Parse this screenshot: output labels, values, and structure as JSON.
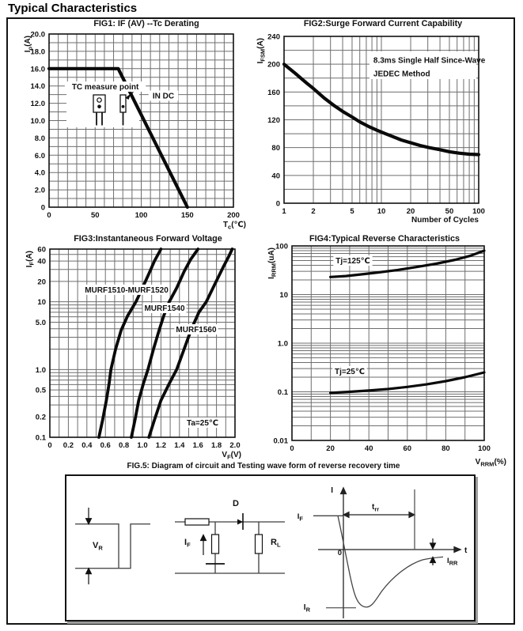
{
  "page": {
    "title": "Typical Characteristics"
  },
  "chart_data": [
    {
      "id": "fig1",
      "type": "line",
      "title": "FIG1: IF (AV) --Tc Derating",
      "xlabel": {
        "main": "T",
        "sub": "c",
        "tail": "(℃)"
      },
      "ylabel": {
        "main": "I",
        "sub": "o",
        "tail": "(A)"
      },
      "x": {
        "scale": "linear",
        "min": 0,
        "max": 200,
        "grid_step": 10,
        "ticks": [
          {
            "v": 0,
            "t": "0"
          },
          {
            "v": 50,
            "t": "50"
          },
          {
            "v": 100,
            "t": "100"
          },
          {
            "v": 150,
            "t": "150"
          },
          {
            "v": 200,
            "t": "200"
          }
        ]
      },
      "y": {
        "scale": "linear",
        "min": 0,
        "max": 20,
        "grid_step": 1,
        "ticks": [
          {
            "v": 20,
            "t": "20.0"
          },
          {
            "v": 18,
            "t": "18.0"
          },
          {
            "v": 16,
            "t": "16.0"
          },
          {
            "v": 14,
            "t": "14.0"
          },
          {
            "v": 12,
            "t": "12.0"
          },
          {
            "v": 10,
            "t": "10.0"
          },
          {
            "v": 8,
            "t": "8.0"
          },
          {
            "v": 6,
            "t": "6.0"
          },
          {
            "v": 4,
            "t": "4.0"
          },
          {
            "v": 2,
            "t": "2.0"
          },
          {
            "v": 0,
            "t": "0"
          }
        ]
      },
      "series": [
        {
          "name": "if-av-tc-derating",
          "points": [
            [
              0,
              16
            ],
            [
              75,
              16
            ],
            [
              150,
              0
            ]
          ]
        }
      ],
      "annotations": [
        {
          "kind": "label",
          "text": "TC measure point",
          "fx": 0.305,
          "fy": 0.304,
          "anchor": "middle",
          "bg": true
        },
        {
          "kind": "label",
          "text": "IN DC",
          "fx": 0.62,
          "fy": 0.356,
          "anchor": "middle",
          "bg": true
        }
      ],
      "decoration": "to220-packages"
    },
    {
      "id": "fig2",
      "type": "line",
      "title": "FIG2:Surge Forward Current Capability",
      "xlabel": {
        "text": "Number of Cycles"
      },
      "ylabel": {
        "main": "I",
        "sub": "FSM",
        "tail": "(A)"
      },
      "x": {
        "scale": "log",
        "min": 1,
        "max": 100,
        "ticks": [
          {
            "v": 1,
            "t": "1"
          },
          {
            "v": 2,
            "t": "2"
          },
          {
            "v": 5,
            "t": "5"
          },
          {
            "v": 10,
            "t": "10"
          },
          {
            "v": 20,
            "t": "20"
          },
          {
            "v": 50,
            "t": "50"
          },
          {
            "v": 100,
            "t": "100"
          }
        ]
      },
      "y": {
        "scale": "linear",
        "min": 0,
        "max": 240,
        "grid_step": 20,
        "ticks": [
          {
            "v": 240,
            "t": "240"
          },
          {
            "v": 200,
            "t": "200"
          },
          {
            "v": 160,
            "t": "160"
          },
          {
            "v": 120,
            "t": "120"
          },
          {
            "v": 80,
            "t": "80"
          },
          {
            "v": 40,
            "t": "40"
          },
          {
            "v": 0,
            "t": "0"
          }
        ]
      },
      "series": [
        {
          "name": "surge-current",
          "points": [
            [
              1,
              200
            ],
            [
              1.3,
              187
            ],
            [
              1.7,
              173
            ],
            [
              2,
              165
            ],
            [
              2.6,
              151
            ],
            [
              3.3,
              140
            ],
            [
              4,
              132
            ],
            [
              5,
              124
            ],
            [
              6,
              117
            ],
            [
              7.5,
              110
            ],
            [
              9,
              105
            ],
            [
              11,
              100
            ],
            [
              13,
              96
            ],
            [
              16,
              91
            ],
            [
              20,
              87
            ],
            [
              25,
              83
            ],
            [
              31,
              80
            ],
            [
              40,
              77
            ],
            [
              50,
              74
            ],
            [
              63,
              72
            ],
            [
              80,
              70.5
            ],
            [
              100,
              70
            ]
          ]
        }
      ],
      "annotations": [
        {
          "kind": "box",
          "fx0": 0.439,
          "fy0": 0.09,
          "fx1": 0.988,
          "fy1": 0.256
        },
        {
          "kind": "label",
          "text": "8.3ms Single Half Since-Wave",
          "fx": 0.459,
          "fy": 0.142,
          "anchor": "start",
          "bg": false
        },
        {
          "kind": "label",
          "text": "JEDEC Method",
          "fx": 0.459,
          "fy": 0.223,
          "anchor": "start",
          "bg": false
        }
      ]
    },
    {
      "id": "fig3",
      "type": "line",
      "title": "FIG3:Instantaneous Forward Voltage",
      "xlabel": {
        "main": "V",
        "sub": "F",
        "tail": "(V)"
      },
      "ylabel": {
        "main": "I",
        "sub": "F",
        "tail": "(A)"
      },
      "x": {
        "scale": "linear",
        "min": 0,
        "max": 2,
        "grid_step": 0.1,
        "ticks": [
          {
            "v": 0,
            "t": "0"
          },
          {
            "v": 0.2,
            "t": "0.2"
          },
          {
            "v": 0.4,
            "t": "0.4"
          },
          {
            "v": 0.6,
            "t": "0.6"
          },
          {
            "v": 0.8,
            "t": "0.8"
          },
          {
            "v": 1,
            "t": "1.0"
          },
          {
            "v": 1.2,
            "t": "1.2"
          },
          {
            "v": 1.4,
            "t": "1.4"
          },
          {
            "v": 1.6,
            "t": "1.6"
          },
          {
            "v": 1.8,
            "t": "1.8"
          },
          {
            "v": 2,
            "t": "2.0"
          }
        ]
      },
      "y": {
        "scale": "log",
        "min": 0.1,
        "max": 60,
        "ticks": [
          {
            "v": 60,
            "t": "60"
          },
          {
            "v": 40,
            "t": "40"
          },
          {
            "v": 20,
            "t": "20"
          },
          {
            "v": 10,
            "t": "10"
          },
          {
            "v": 5,
            "t": "5.0"
          },
          {
            "v": 1,
            "t": "1.0"
          },
          {
            "v": 0.5,
            "t": "0.5"
          },
          {
            "v": 0.2,
            "t": "0.2"
          },
          {
            "v": 0.1,
            "t": "0.1"
          }
        ]
      },
      "series": [
        {
          "name": "murf1510-murf1520",
          "points": [
            [
              0.53,
              0.1
            ],
            [
              0.57,
              0.18
            ],
            [
              0.61,
              0.35
            ],
            [
              0.64,
              0.62
            ],
            [
              0.66,
              1
            ],
            [
              0.71,
              2
            ],
            [
              0.77,
              3.8
            ],
            [
              0.84,
              6.2
            ],
            [
              0.93,
              10
            ],
            [
              1.0,
              16
            ],
            [
              1.07,
              26
            ],
            [
              1.13,
              40
            ],
            [
              1.2,
              60
            ]
          ]
        },
        {
          "name": "murf1540",
          "points": [
            [
              0.88,
              0.1
            ],
            [
              0.92,
              0.18
            ],
            [
              0.96,
              0.35
            ],
            [
              1.01,
              0.62
            ],
            [
              1.06,
              1
            ],
            [
              1.12,
              2
            ],
            [
              1.18,
              3.8
            ],
            [
              1.23,
              6.2
            ],
            [
              1.29,
              10
            ],
            [
              1.37,
              16
            ],
            [
              1.45,
              28
            ],
            [
              1.52,
              42
            ],
            [
              1.6,
              60
            ]
          ]
        },
        {
          "name": "murf1560",
          "points": [
            [
              1.07,
              0.1
            ],
            [
              1.13,
              0.18
            ],
            [
              1.2,
              0.35
            ],
            [
              1.29,
              0.62
            ],
            [
              1.37,
              1
            ],
            [
              1.45,
              2
            ],
            [
              1.53,
              4
            ],
            [
              1.61,
              7
            ],
            [
              1.69,
              10
            ],
            [
              1.78,
              18
            ],
            [
              1.87,
              32
            ],
            [
              1.93,
              46
            ],
            [
              1.97,
              60
            ]
          ]
        }
      ],
      "annotations": [
        {
          "kind": "label",
          "text": "MURF1510-MURF1520",
          "fx": 0.4145,
          "fy": 0.216,
          "anchor": "middle",
          "bg": true
        },
        {
          "kind": "label",
          "text": "MURF1540",
          "fx": 0.6197,
          "fy": 0.313,
          "anchor": "middle",
          "bg": true
        },
        {
          "kind": "label",
          "text": "MURF1560",
          "fx": 0.7906,
          "fy": 0.4265,
          "anchor": "middle",
          "bg": true
        },
        {
          "kind": "label",
          "text": "Ta=25℃",
          "fx": 0.8248,
          "fy": 0.9223,
          "anchor": "middle",
          "bg": true
        }
      ]
    },
    {
      "id": "fig4",
      "type": "line",
      "title": "FIG4:Typical Reverse Characteristics",
      "xlabel": {
        "main": "V",
        "sub": "RRM",
        "tail": "(%)"
      },
      "ylabel": {
        "main": "I",
        "sub": "RRM",
        "tail": "(uA)"
      },
      "x": {
        "scale": "linear",
        "min": 0,
        "max": 100,
        "grid_step": 10,
        "ticks": [
          {
            "v": 0,
            "t": "0"
          },
          {
            "v": 20,
            "t": "20"
          },
          {
            "v": 40,
            "t": "40"
          },
          {
            "v": 60,
            "t": "60"
          },
          {
            "v": 80,
            "t": "80"
          },
          {
            "v": 100,
            "t": "100"
          }
        ]
      },
      "y": {
        "scale": "log",
        "min": 0.01,
        "max": 100,
        "ticks": [
          {
            "v": 100,
            "t": "100"
          },
          {
            "v": 10,
            "t": "10"
          },
          {
            "v": 1,
            "t": "1.0"
          },
          {
            "v": 0.1,
            "t": "0.1"
          },
          {
            "v": 0.01,
            "t": "0.01"
          }
        ]
      },
      "series": [
        {
          "name": "tj-125c",
          "points": [
            [
              20,
              23
            ],
            [
              28,
              24
            ],
            [
              36,
              26
            ],
            [
              45,
              28.5
            ],
            [
              55,
              32
            ],
            [
              65,
              37
            ],
            [
              75,
              43
            ],
            [
              85,
              52
            ],
            [
              93,
              63
            ],
            [
              100,
              80
            ]
          ]
        },
        {
          "name": "tj-25c",
          "points": [
            [
              20,
              0.095
            ],
            [
              30,
              0.1
            ],
            [
              40,
              0.106
            ],
            [
              50,
              0.114
            ],
            [
              60,
              0.126
            ],
            [
              70,
              0.142
            ],
            [
              80,
              0.166
            ],
            [
              90,
              0.2
            ],
            [
              100,
              0.25
            ]
          ]
        }
      ],
      "annotations": [
        {
          "kind": "label",
          "text": "Tj=125℃",
          "fx": 0.3169,
          "fy": 0.0752,
          "anchor": "middle",
          "bg": true
        },
        {
          "kind": "label",
          "text": "Tj=25℃",
          "fx": 0.3004,
          "fy": 0.6443,
          "anchor": "middle",
          "bg": true
        }
      ]
    }
  ],
  "fig5": {
    "caption": "FIG.5: Diagram of circuit and Testing wave form of reverse recovery time",
    "labels": {
      "vr": {
        "main": "V",
        "sub": "R"
      },
      "if_source": {
        "main": "I",
        "sub": "F"
      },
      "d": "D",
      "rl": {
        "main": "R",
        "sub": "L"
      },
      "i_axis": "I",
      "t_axis": "t",
      "if_level": {
        "main": "I",
        "sub": "F"
      },
      "trr": {
        "main": "t",
        "sub": "rr"
      },
      "irr": {
        "main": "I",
        "sub": "RR"
      },
      "ir": {
        "main": "I",
        "sub": "R"
      },
      "zero": "0"
    }
  }
}
